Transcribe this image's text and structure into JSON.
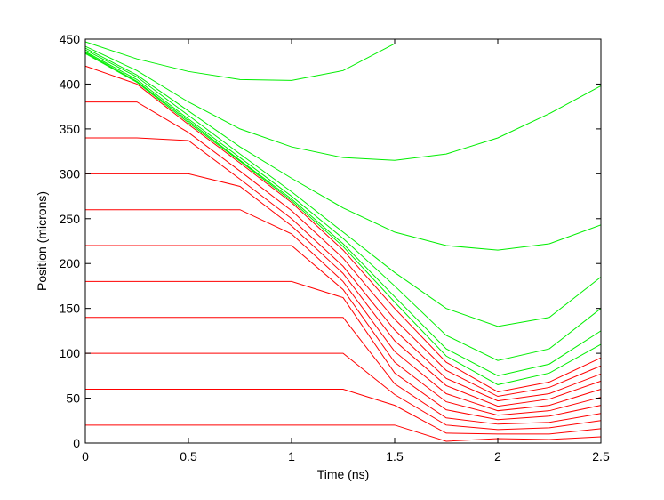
{
  "chart_data": {
    "type": "line",
    "xlabel": "Time (ns)",
    "ylabel": "Position (microns)",
    "x": [
      0,
      0.25,
      0.5,
      0.75,
      1,
      1.25,
      1.5,
      1.75,
      2,
      2.25,
      2.5
    ],
    "xlim": [
      0,
      2.5
    ],
    "xticks": [
      0,
      0.5,
      1,
      1.5,
      2,
      2.5
    ],
    "ylim": [
      0,
      450
    ],
    "yticks": [
      0,
      50,
      100,
      150,
      200,
      250,
      300,
      350,
      400,
      450
    ],
    "series": [
      {
        "color": "#ff0000",
        "values": [
          420,
          400,
          355,
          312,
          268,
          215,
          150,
          90,
          57,
          68,
          95
        ]
      },
      {
        "color": "#ff0000",
        "values": [
          380,
          380,
          346,
          303,
          259,
          206,
          138,
          81,
          52,
          62,
          86
        ]
      },
      {
        "color": "#ff0000",
        "values": [
          340,
          340,
          337,
          294,
          250,
          197,
          126,
          72,
          47,
          55,
          77
        ]
      },
      {
        "color": "#ff0000",
        "values": [
          300,
          300,
          300,
          286,
          242,
          189,
          114,
          64,
          41,
          49,
          69
        ]
      },
      {
        "color": "#ff0000",
        "values": [
          260,
          260,
          260,
          260,
          233,
          180,
          102,
          55,
          36,
          42,
          60
        ]
      },
      {
        "color": "#ff0000",
        "values": [
          220,
          220,
          220,
          220,
          220,
          171,
          90,
          46,
          31,
          36,
          51
        ]
      },
      {
        "color": "#ff0000",
        "values": [
          180,
          180,
          180,
          180,
          180,
          162,
          78,
          37,
          26,
          30,
          42
        ]
      },
      {
        "color": "#ff0000",
        "values": [
          140,
          140,
          140,
          140,
          140,
          140,
          66,
          28,
          21,
          23,
          33
        ]
      },
      {
        "color": "#ff0000",
        "values": [
          100,
          100,
          100,
          100,
          100,
          100,
          54,
          20,
          15,
          17,
          25
        ]
      },
      {
        "color": "#ff0000",
        "values": [
          60,
          60,
          60,
          60,
          60,
          60,
          42,
          11,
          10,
          10,
          16
        ]
      },
      {
        "color": "#ff0000",
        "values": [
          20,
          20,
          20,
          20,
          20,
          20,
          20,
          2,
          5,
          4,
          7
        ]
      },
      {
        "color": "#00ee00",
        "values": [
          447,
          428,
          414,
          405,
          404,
          415,
          445,
          null,
          null,
          null,
          null
        ]
      },
      {
        "color": "#00ee00",
        "values": [
          442,
          415,
          380,
          350,
          330,
          318,
          315,
          322,
          340,
          367,
          398
        ]
      },
      {
        "color": "#00ee00",
        "values": [
          440,
          410,
          370,
          330,
          295,
          262,
          235,
          220,
          215,
          222,
          243
        ]
      },
      {
        "color": "#00ee00",
        "values": [
          438,
          408,
          365,
          322,
          280,
          235,
          190,
          150,
          130,
          140,
          185
        ]
      },
      {
        "color": "#00ee00",
        "values": [
          436,
          405,
          361,
          318,
          275,
          228,
          175,
          120,
          92,
          105,
          150
        ]
      },
      {
        "color": "#00ee00",
        "values": [
          435,
          403,
          359,
          315,
          272,
          222,
          163,
          105,
          75,
          88,
          125
        ]
      },
      {
        "color": "#00ee00",
        "values": [
          434,
          402,
          357,
          314,
          270,
          219,
          157,
          97,
          65,
          78,
          110
        ]
      }
    ]
  }
}
